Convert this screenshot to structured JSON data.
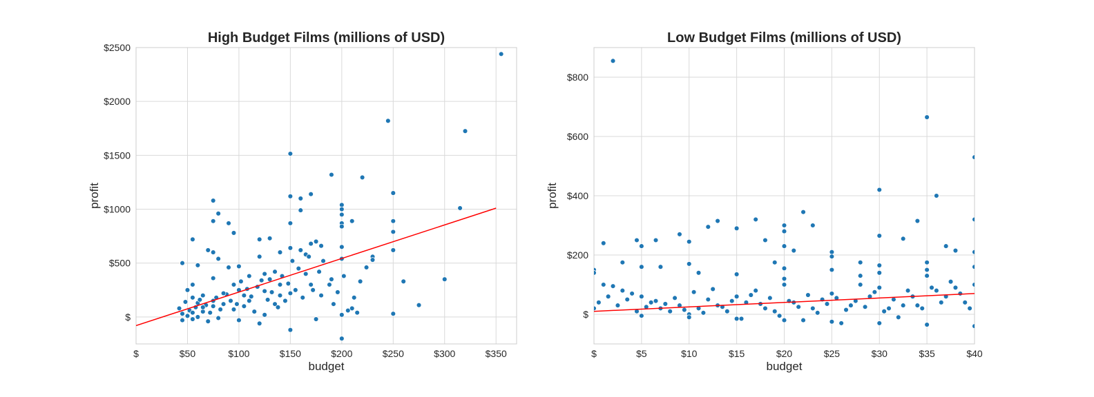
{
  "colors": {
    "points": "#1f77b4",
    "fit_line": "#ff0000"
  },
  "chart_data": [
    {
      "type": "scatter",
      "title": "High Budget Films (millions of USD)",
      "xlabel": "budget",
      "ylabel": "profit",
      "xlim": [
        0,
        370
      ],
      "ylim": [
        -250,
        2500
      ],
      "x_ticks": [
        {
          "v": 0,
          "label": "$"
        },
        {
          "v": 50,
          "label": "$50"
        },
        {
          "v": 100,
          "label": "$100"
        },
        {
          "v": 150,
          "label": "$150"
        },
        {
          "v": 200,
          "label": "$200"
        },
        {
          "v": 250,
          "label": "$250"
        },
        {
          "v": 300,
          "label": "$300"
        },
        {
          "v": 350,
          "label": "$350"
        }
      ],
      "y_ticks": [
        {
          "v": 0,
          "label": "$"
        },
        {
          "v": 500,
          "label": "$500"
        },
        {
          "v": 1000,
          "label": "$1000"
        },
        {
          "v": 1500,
          "label": "$1500"
        },
        {
          "v": 2000,
          "label": "$2000"
        },
        {
          "v": 2500,
          "label": "$2500"
        }
      ],
      "grid": true,
      "fit_line": {
        "x": [
          0,
          350
        ],
        "y": [
          -80,
          1010
        ]
      },
      "points": [
        [
          355,
          2440
        ],
        [
          245,
          1820
        ],
        [
          320,
          1725
        ],
        [
          150,
          1515
        ],
        [
          190,
          1320
        ],
        [
          220,
          1295
        ],
        [
          250,
          1150
        ],
        [
          170,
          1140
        ],
        [
          150,
          1120
        ],
        [
          160,
          1100
        ],
        [
          75,
          1080
        ],
        [
          200,
          1040
        ],
        [
          315,
          1010
        ],
        [
          200,
          1000
        ],
        [
          160,
          990
        ],
        [
          80,
          960
        ],
        [
          200,
          950
        ],
        [
          210,
          890
        ],
        [
          250,
          890
        ],
        [
          90,
          870
        ],
        [
          75,
          890
        ],
        [
          150,
          870
        ],
        [
          200,
          870
        ],
        [
          200,
          840
        ],
        [
          250,
          790
        ],
        [
          95,
          780
        ],
        [
          130,
          730
        ],
        [
          120,
          720
        ],
        [
          55,
          720
        ],
        [
          175,
          700
        ],
        [
          170,
          680
        ],
        [
          180,
          660
        ],
        [
          200,
          650
        ],
        [
          150,
          640
        ],
        [
          160,
          620
        ],
        [
          250,
          620
        ],
        [
          70,
          620
        ],
        [
          75,
          600
        ],
        [
          140,
          600
        ],
        [
          165,
          580
        ],
        [
          230,
          560
        ],
        [
          230,
          530
        ],
        [
          120,
          560
        ],
        [
          80,
          540
        ],
        [
          45,
          500
        ],
        [
          200,
          540
        ],
        [
          90,
          460
        ],
        [
          60,
          480
        ],
        [
          100,
          470
        ],
        [
          125,
          400
        ],
        [
          135,
          420
        ],
        [
          110,
          380
        ],
        [
          75,
          360
        ],
        [
          190,
          350
        ],
        [
          300,
          350
        ],
        [
          260,
          330
        ],
        [
          170,
          300
        ],
        [
          140,
          300
        ],
        [
          100,
          250
        ],
        [
          125,
          240
        ],
        [
          150,
          220
        ],
        [
          180,
          200
        ],
        [
          110,
          150
        ],
        [
          55,
          180
        ],
        [
          60,
          130
        ],
        [
          75,
          100
        ],
        [
          85,
          120
        ],
        [
          95,
          70
        ],
        [
          65,
          50
        ],
        [
          45,
          30
        ],
        [
          50,
          10
        ],
        [
          55,
          -20
        ],
        [
          60,
          0
        ],
        [
          70,
          -40
        ],
        [
          80,
          -10
        ],
        [
          100,
          -30
        ],
        [
          120,
          -60
        ],
        [
          150,
          -120
        ],
        [
          200,
          -200
        ],
        [
          175,
          -20
        ],
        [
          200,
          20
        ],
        [
          210,
          80
        ],
        [
          215,
          40
        ],
        [
          275,
          110
        ],
        [
          250,
          30
        ],
        [
          155,
          250
        ],
        [
          165,
          400
        ],
        [
          130,
          350
        ],
        [
          140,
          200
        ],
        [
          145,
          150
        ],
        [
          105,
          100
        ],
        [
          115,
          50
        ],
        [
          125,
          20
        ],
        [
          135,
          120
        ],
        [
          50,
          250
        ],
        [
          55,
          300
        ],
        [
          65,
          200
        ],
        [
          42,
          80
        ],
        [
          48,
          140
        ],
        [
          52,
          60
        ],
        [
          58,
          90
        ],
        [
          62,
          160
        ],
        [
          68,
          110
        ],
        [
          72,
          40
        ],
        [
          78,
          180
        ],
        [
          82,
          70
        ],
        [
          88,
          210
        ],
        [
          92,
          150
        ],
        [
          98,
          120
        ],
        [
          102,
          330
        ],
        [
          108,
          260
        ],
        [
          112,
          190
        ],
        [
          118,
          280
        ],
        [
          122,
          340
        ],
        [
          128,
          160
        ],
        [
          132,
          230
        ],
        [
          138,
          90
        ],
        [
          142,
          380
        ],
        [
          148,
          310
        ],
        [
          152,
          520
        ],
        [
          158,
          450
        ],
        [
          162,
          180
        ],
        [
          168,
          560
        ],
        [
          172,
          250
        ],
        [
          178,
          420
        ],
        [
          182,
          520
        ],
        [
          188,
          300
        ],
        [
          192,
          120
        ],
        [
          196,
          230
        ],
        [
          202,
          380
        ],
        [
          206,
          60
        ],
        [
          212,
          180
        ],
        [
          218,
          330
        ],
        [
          224,
          460
        ],
        [
          45,
          -30
        ],
        [
          55,
          40
        ],
        [
          65,
          90
        ],
        [
          75,
          150
        ],
        [
          85,
          220
        ],
        [
          95,
          300
        ],
        [
          105,
          200
        ]
      ]
    },
    {
      "type": "scatter",
      "title": "Low Budget Films (millions of USD)",
      "xlabel": "budget",
      "ylabel": "profit",
      "xlim": [
        0,
        40
      ],
      "ylim": [
        -100,
        900
      ],
      "x_ticks": [
        {
          "v": 0,
          "label": "$"
        },
        {
          "v": 5,
          "label": "$5"
        },
        {
          "v": 10,
          "label": "$10"
        },
        {
          "v": 15,
          "label": "$15"
        },
        {
          "v": 20,
          "label": "$20"
        },
        {
          "v": 25,
          "label": "$25"
        },
        {
          "v": 30,
          "label": "$30"
        },
        {
          "v": 35,
          "label": "$35"
        },
        {
          "v": 40,
          "label": "$40"
        }
      ],
      "y_ticks": [
        {
          "v": 0,
          "label": "$"
        },
        {
          "v": 200,
          "label": "$200"
        },
        {
          "v": 400,
          "label": "$400"
        },
        {
          "v": 600,
          "label": "$600"
        },
        {
          "v": 800,
          "label": "$800"
        }
      ],
      "grid": true,
      "fit_line": {
        "x": [
          0,
          40
        ],
        "y": [
          10,
          70
        ]
      },
      "points": [
        [
          2,
          855
        ],
        [
          35,
          665
        ],
        [
          40,
          530
        ],
        [
          30,
          420
        ],
        [
          36,
          400
        ],
        [
          22,
          345
        ],
        [
          17,
          320
        ],
        [
          13,
          315
        ],
        [
          34,
          315
        ],
        [
          12,
          295
        ],
        [
          23,
          300
        ],
        [
          15,
          290
        ],
        [
          20,
          300
        ],
        [
          20,
          280
        ],
        [
          9,
          270
        ],
        [
          40,
          320
        ],
        [
          30,
          265
        ],
        [
          32.5,
          255
        ],
        [
          18,
          250
        ],
        [
          4.5,
          250
        ],
        [
          6.5,
          250
        ],
        [
          10,
          245
        ],
        [
          1,
          240
        ],
        [
          5,
          230
        ],
        [
          37,
          230
        ],
        [
          20,
          230
        ],
        [
          21,
          215
        ],
        [
          38,
          215
        ],
        [
          3,
          175
        ],
        [
          28,
          175
        ],
        [
          10,
          170
        ],
        [
          5,
          160
        ],
        [
          7,
          160
        ],
        [
          19,
          175
        ],
        [
          30,
          165
        ],
        [
          35,
          175
        ],
        [
          25,
          210
        ],
        [
          25,
          195
        ],
        [
          40,
          210
        ],
        [
          20,
          155
        ],
        [
          15,
          135
        ],
        [
          11,
          140
        ],
        [
          0,
          150
        ],
        [
          0,
          140
        ],
        [
          1,
          100
        ],
        [
          2,
          95
        ],
        [
          3,
          80
        ],
        [
          4,
          70
        ],
        [
          5,
          60
        ],
        [
          6,
          40
        ],
        [
          7,
          20
        ],
        [
          8,
          10
        ],
        [
          9,
          30
        ],
        [
          10,
          0
        ],
        [
          11,
          20
        ],
        [
          12,
          50
        ],
        [
          13,
          30
        ],
        [
          14,
          10
        ],
        [
          15,
          60
        ],
        [
          16,
          40
        ],
        [
          17,
          80
        ],
        [
          18,
          20
        ],
        [
          19,
          10
        ],
        [
          20,
          100
        ],
        [
          21,
          40
        ],
        [
          22,
          -20
        ],
        [
          23,
          20
        ],
        [
          24,
          50
        ],
        [
          25,
          70
        ],
        [
          26,
          -30
        ],
        [
          27,
          30
        ],
        [
          28,
          100
        ],
        [
          29,
          60
        ],
        [
          30,
          90
        ],
        [
          31,
          20
        ],
        [
          32,
          -10
        ],
        [
          33,
          80
        ],
        [
          34,
          30
        ],
        [
          35,
          130
        ],
        [
          36,
          80
        ],
        [
          37,
          60
        ],
        [
          38,
          90
        ],
        [
          39,
          40
        ],
        [
          40,
          -40
        ],
        [
          0,
          20
        ],
        [
          0.5,
          40
        ],
        [
          1.5,
          60
        ],
        [
          2.5,
          30
        ],
        [
          3.5,
          50
        ],
        [
          4.5,
          10
        ],
        [
          5.5,
          25
        ],
        [
          6.5,
          45
        ],
        [
          7.5,
          35
        ],
        [
          8.5,
          55
        ],
        [
          9.5,
          15
        ],
        [
          10.5,
          75
        ],
        [
          11.5,
          5
        ],
        [
          12.5,
          85
        ],
        [
          13.5,
          25
        ],
        [
          14.5,
          45
        ],
        [
          15.5,
          -15
        ],
        [
          16.5,
          65
        ],
        [
          17.5,
          35
        ],
        [
          18.5,
          55
        ],
        [
          19.5,
          -5
        ],
        [
          20.5,
          45
        ],
        [
          21.5,
          25
        ],
        [
          22.5,
          65
        ],
        [
          23.5,
          5
        ],
        [
          24.5,
          35
        ],
        [
          25.5,
          55
        ],
        [
          26.5,
          15
        ],
        [
          27.5,
          45
        ],
        [
          28.5,
          25
        ],
        [
          29.5,
          75
        ],
        [
          30.5,
          10
        ],
        [
          31.5,
          50
        ],
        [
          32.5,
          30
        ],
        [
          33.5,
          60
        ],
        [
          34.5,
          20
        ],
        [
          35.5,
          90
        ],
        [
          36.5,
          40
        ],
        [
          37.5,
          110
        ],
        [
          38.5,
          70
        ],
        [
          39.5,
          20
        ],
        [
          40,
          160
        ],
        [
          40,
          100
        ],
        [
          25,
          -25
        ],
        [
          30,
          -30
        ],
        [
          35,
          -35
        ],
        [
          20,
          -20
        ],
        [
          15,
          -15
        ],
        [
          10,
          -10
        ],
        [
          5,
          -5
        ],
        [
          28,
          130
        ],
        [
          30,
          140
        ],
        [
          35,
          150
        ],
        [
          25,
          150
        ],
        [
          20,
          120
        ]
      ]
    }
  ]
}
